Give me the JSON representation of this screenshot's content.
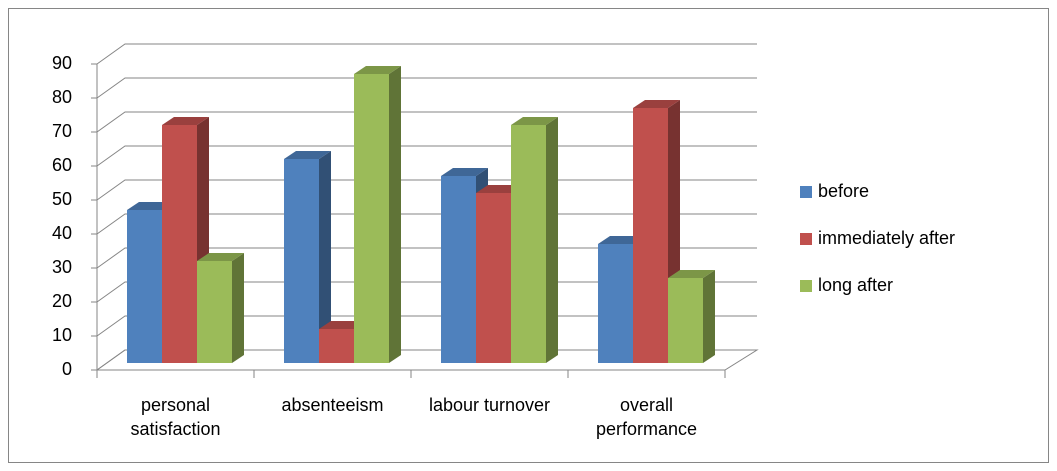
{
  "chart_data": {
    "type": "bar3d",
    "categories": [
      "personal satisfaction",
      "absenteeism",
      "labour turnover",
      "overall performance"
    ],
    "series": [
      {
        "name": "before",
        "color": "#4f81bd",
        "values": [
          45,
          60,
          55,
          35
        ]
      },
      {
        "name": "immediately after",
        "color": "#c0504d",
        "values": [
          70,
          10,
          50,
          75
        ]
      },
      {
        "name": "long after",
        "color": "#9bbb59",
        "values": [
          30,
          85,
          70,
          25
        ]
      }
    ],
    "ylim": [
      0,
      90
    ],
    "yticks": [
      0,
      10,
      20,
      30,
      40,
      50,
      60,
      70,
      80,
      90
    ],
    "grid": true,
    "legend": "right"
  }
}
